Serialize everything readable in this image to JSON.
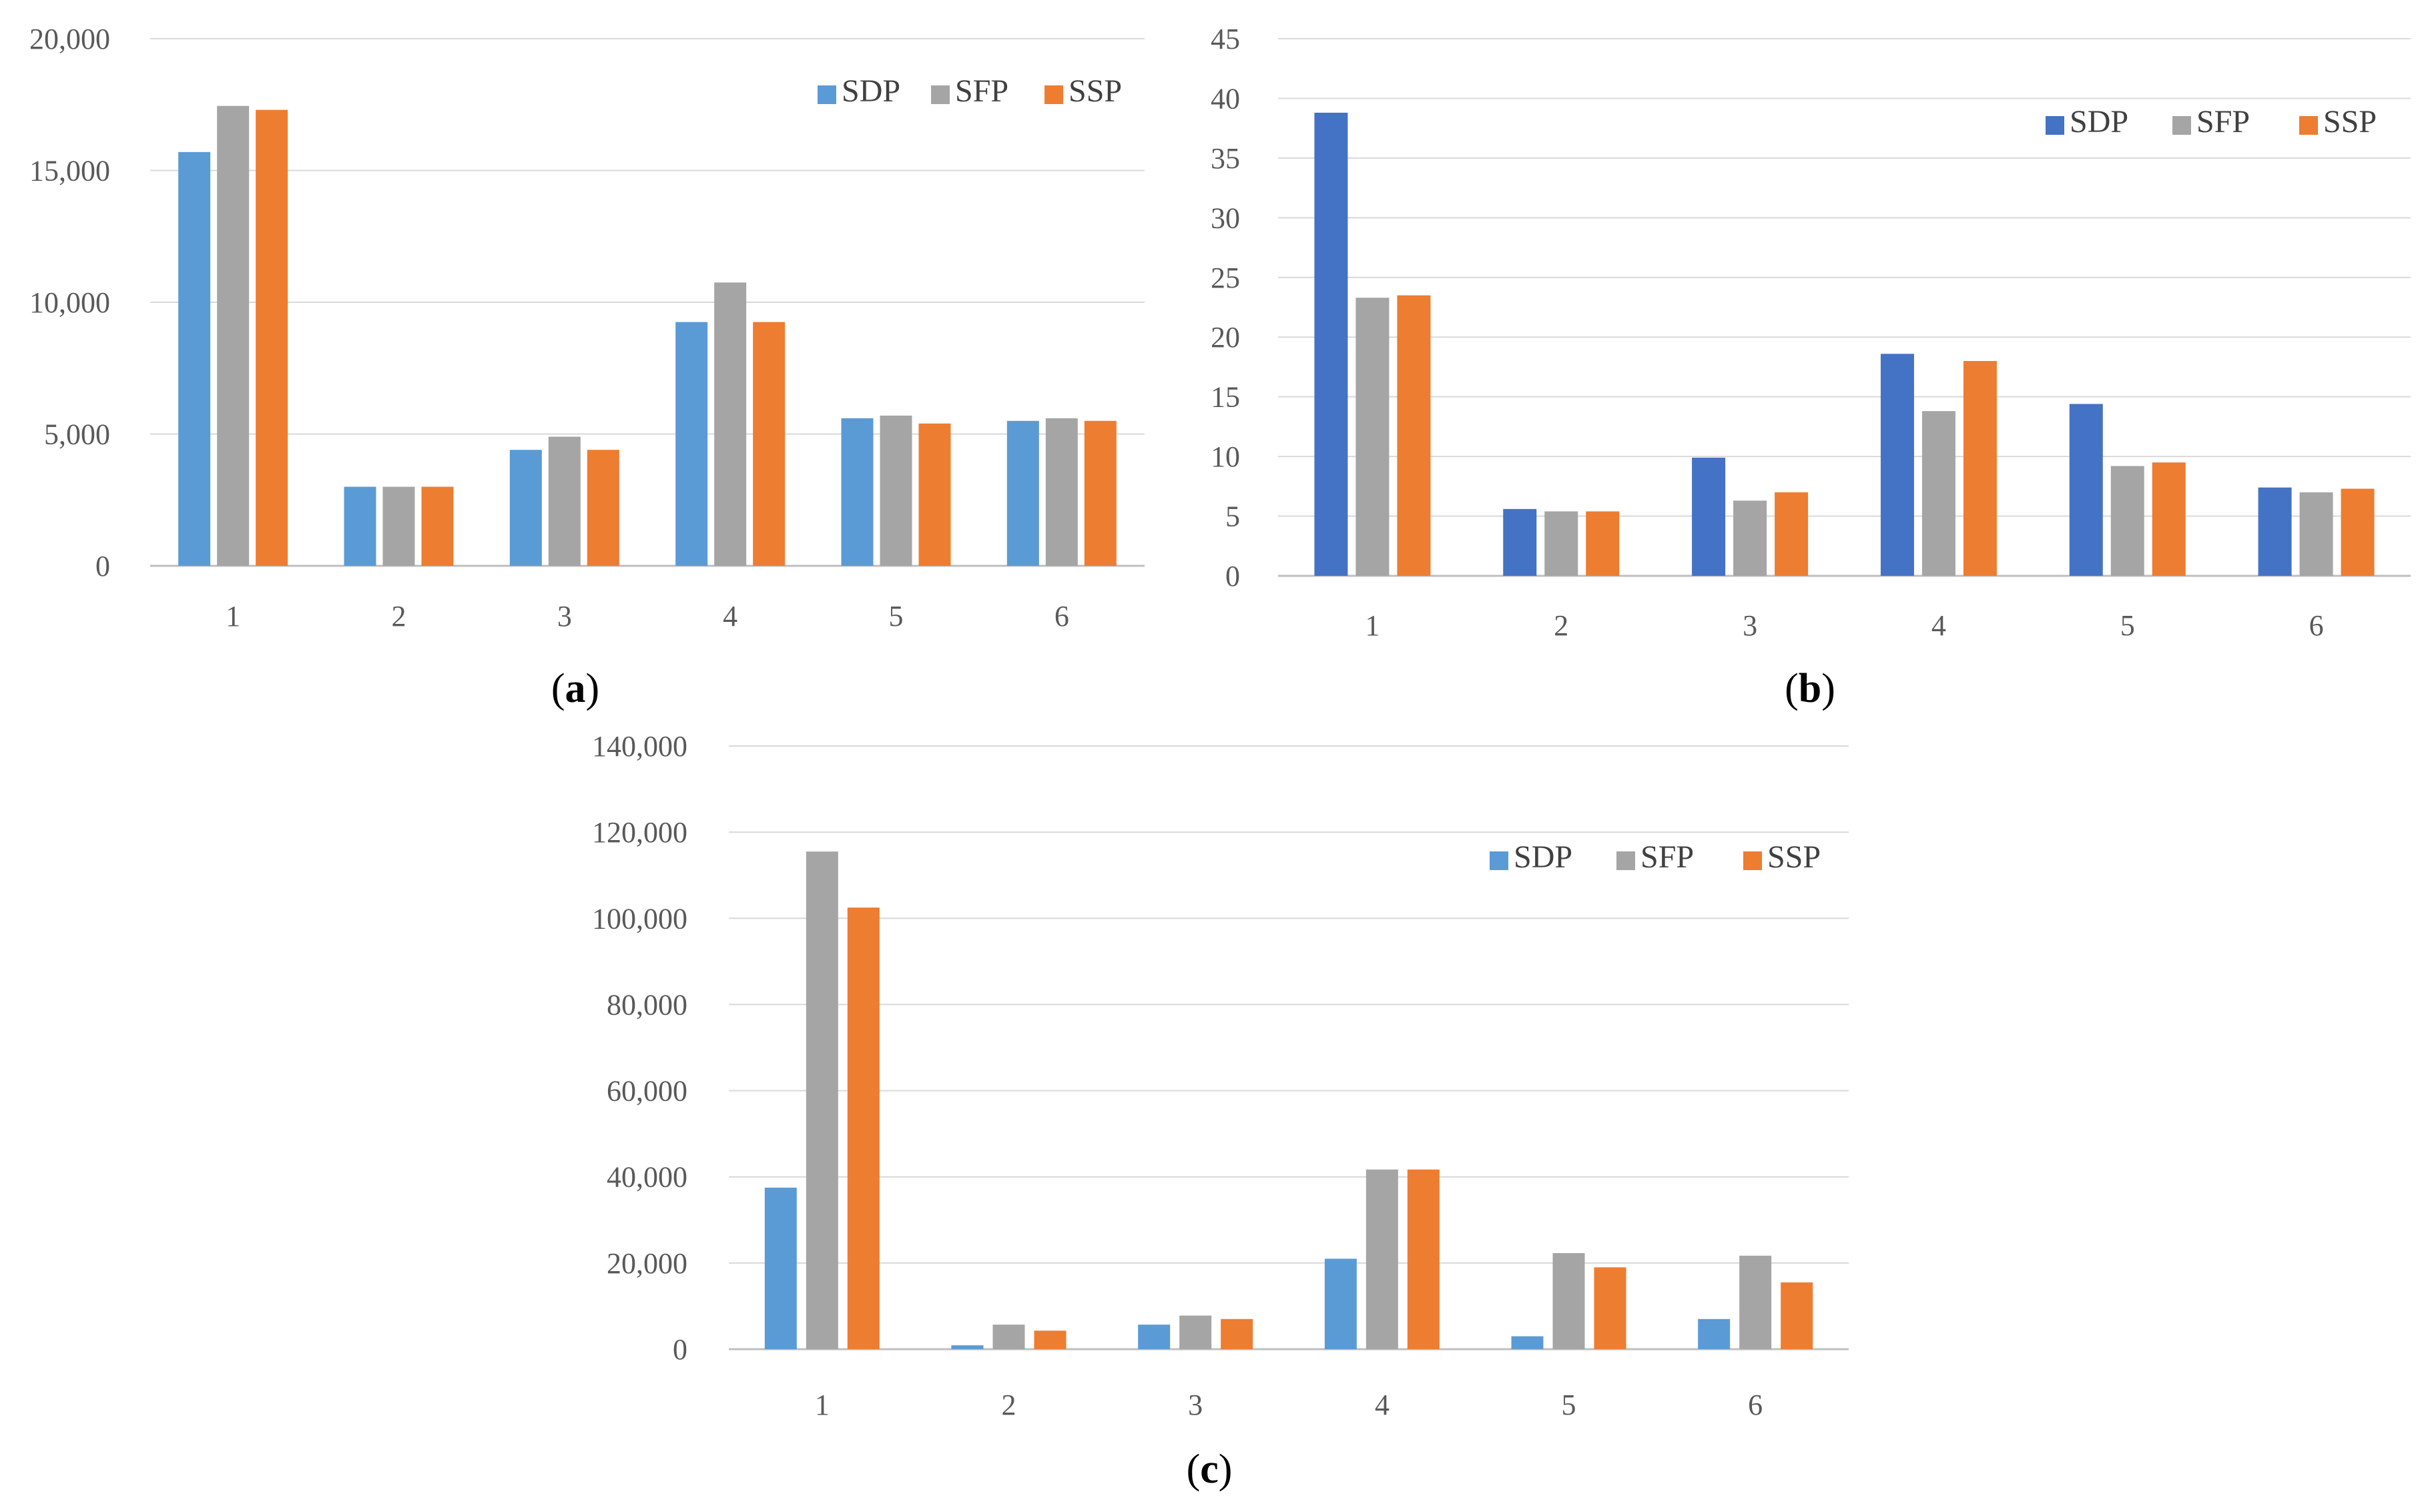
{
  "figure": {
    "series_colors": {
      "SDP_a": "#5B9BD5",
      "SDP_b": "#4472C4",
      "SDP_c": "#5B9BD5",
      "SFP": "#A5A5A5",
      "SSP": "#ED7D31"
    },
    "gridline_color": "#D9D9D9",
    "axis_color": "#BFBFBF"
  },
  "chart_data": [
    {
      "id": "a",
      "type": "bar",
      "panel_label": "(a)",
      "panel_letter": "a",
      "categories": [
        "1",
        "2",
        "3",
        "4",
        "5",
        "6"
      ],
      "series": [
        {
          "name": "SDP",
          "values": [
            15700,
            3000,
            4400,
            9250,
            5600,
            5500
          ]
        },
        {
          "name": "SFP",
          "values": [
            17450,
            3000,
            4900,
            10750,
            5700,
            5600
          ]
        },
        {
          "name": "SSP",
          "values": [
            17300,
            3000,
            4400,
            9250,
            5400,
            5500
          ]
        }
      ],
      "yticks": [
        "0",
        "5,000",
        "10,000",
        "15,000",
        "20,000"
      ],
      "ylim": [
        0,
        20000
      ],
      "ystep": 5000,
      "xlabel": "",
      "ylabel": "",
      "title": "",
      "legend_position": "top-right",
      "grid": true
    },
    {
      "id": "b",
      "type": "bar",
      "panel_label": "(b)",
      "panel_letter": "b",
      "categories": [
        "1",
        "2",
        "3",
        "4",
        "5",
        "6"
      ],
      "series": [
        {
          "name": "SDP",
          "values": [
            38.8,
            5.6,
            9.9,
            18.6,
            14.4,
            7.4
          ]
        },
        {
          "name": "SFP",
          "values": [
            23.3,
            5.4,
            6.3,
            13.8,
            9.2,
            7.0
          ]
        },
        {
          "name": "SSP",
          "values": [
            23.5,
            5.4,
            7.0,
            18.0,
            9.5,
            7.3
          ]
        }
      ],
      "yticks": [
        "0",
        "5",
        "10",
        "15",
        "20",
        "25",
        "30",
        "35",
        "40",
        "45"
      ],
      "ylim": [
        0,
        45
      ],
      "ystep": 5,
      "xlabel": "",
      "ylabel": "",
      "title": "",
      "legend_position": "top-right",
      "grid": true
    },
    {
      "id": "c",
      "type": "bar",
      "panel_label": "(c)",
      "panel_letter": "c",
      "categories": [
        "1",
        "2",
        "3",
        "4",
        "5",
        "6"
      ],
      "series": [
        {
          "name": "SDP",
          "values": [
            37500,
            900,
            5700,
            21000,
            3000,
            7000
          ]
        },
        {
          "name": "SFP",
          "values": [
            115500,
            5700,
            7800,
            41700,
            22300,
            21700
          ]
        },
        {
          "name": "SSP",
          "values": [
            102500,
            4300,
            7000,
            41700,
            19000,
            15500
          ]
        }
      ],
      "yticks": [
        "0",
        "20,000",
        "40,000",
        "60,000",
        "80,000",
        "100,000",
        "120,000",
        "140,000"
      ],
      "ylim": [
        0,
        140000
      ],
      "ystep": 20000,
      "xlabel": "",
      "ylabel": "",
      "title": "",
      "legend_position": "top-right",
      "grid": true
    }
  ]
}
